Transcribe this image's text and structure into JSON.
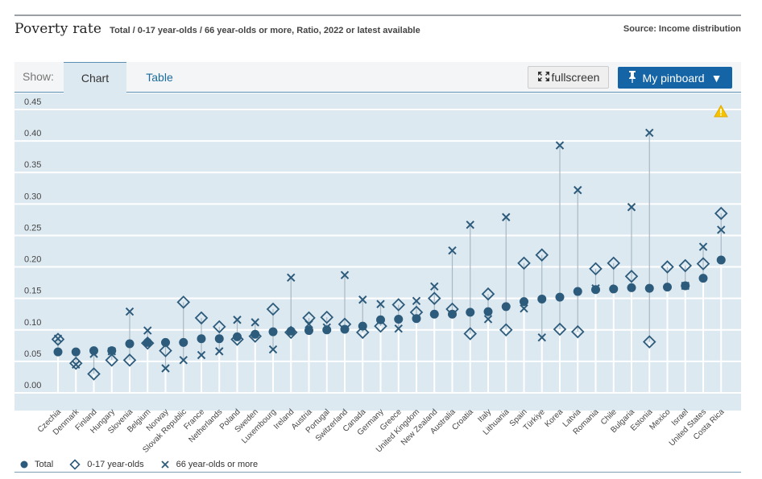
{
  "header": {
    "title": "Poverty rate",
    "subtitle": "Total / 0-17 year-olds / 66 year-olds or more, Ratio, 2022 or latest available",
    "source": "Source: Income distribution"
  },
  "toolbar": {
    "show_label": "Show:",
    "tabs": [
      {
        "label": "Chart",
        "active": true
      },
      {
        "label": "Table",
        "active": false
      }
    ],
    "fullscreen_label": "fullscreen",
    "pinboard_label": "My pinboard"
  },
  "icons": {
    "fullscreen": "expand-arrows-icon",
    "pinboard": "pushpin-icon",
    "dropdown": "caret-down-icon",
    "warning": "warning-triangle-icon"
  },
  "colors": {
    "marker": "#2d5b7b",
    "plot_bg": "#dde9f1",
    "accent": "#1565a6",
    "warning": "#f5c400"
  },
  "legend": [
    {
      "label": "Total",
      "symbol": "circle"
    },
    {
      "label": "0-17 year-olds",
      "symbol": "diamond"
    },
    {
      "label": "66 year-olds or more",
      "symbol": "cross"
    }
  ],
  "chart_data": {
    "type": "scatter",
    "title": "Poverty rate",
    "xlabel": "",
    "ylabel": "",
    "ylim": [
      0,
      0.45
    ],
    "yticks": [
      "0.00",
      "0.05",
      "0.10",
      "0.15",
      "0.20",
      "0.25",
      "0.30",
      "0.35",
      "0.40",
      "0.45"
    ],
    "grid": true,
    "legend_position": "bottom-left",
    "categories": [
      "Czechia",
      "Denmark",
      "Finland",
      "Hungary",
      "Slovenia",
      "Belgium",
      "Norway",
      "Slovak Republic",
      "France",
      "Netherlands",
      "Poland",
      "Sweden",
      "Luxembourg",
      "Ireland",
      "Austria",
      "Portugal",
      "Switzerland",
      "Canada",
      "Germany",
      "Greece",
      "United Kingdom",
      "New Zealand",
      "Australia",
      "Croatia",
      "Italy",
      "Lithuania",
      "Spain",
      "Türkiye",
      "Korea",
      "Latvia",
      "Romania",
      "Chile",
      "Bulgaria",
      "Estonia",
      "Mexico",
      "Israel",
      "United States",
      "Costa Rica"
    ],
    "series": [
      {
        "name": "Total",
        "symbol": "circle",
        "values": [
          0.065,
          0.065,
          0.067,
          0.067,
          0.078,
          0.08,
          0.08,
          0.08,
          0.086,
          0.086,
          0.089,
          0.093,
          0.097,
          0.098,
          0.099,
          0.1,
          0.101,
          0.106,
          0.116,
          0.117,
          0.118,
          0.125,
          0.125,
          0.128,
          0.129,
          0.137,
          0.145,
          0.149,
          0.152,
          0.161,
          0.164,
          0.165,
          0.167,
          0.166,
          0.168,
          0.17,
          0.182,
          0.211
        ]
      },
      {
        "name": "0-17 year-olds",
        "symbol": "diamond",
        "values": [
          0.085,
          0.047,
          0.03,
          0.052,
          0.052,
          0.079,
          0.067,
          0.144,
          0.119,
          0.105,
          0.085,
          0.09,
          0.133,
          0.096,
          0.119,
          0.12,
          0.109,
          0.096,
          0.106,
          0.14,
          0.128,
          0.15,
          0.133,
          0.094,
          0.157,
          0.1,
          0.206,
          0.219,
          0.101,
          0.097,
          0.197,
          0.206,
          0.185,
          0.081,
          0.2,
          0.202,
          0.205,
          0.285
        ]
      },
      {
        "name": "66 year-olds or more",
        "symbol": "cross",
        "values": [
          0.086,
          0.045,
          0.062,
          0.066,
          0.129,
          0.099,
          0.039,
          0.052,
          0.06,
          0.066,
          0.116,
          0.112,
          0.069,
          0.183,
          0.109,
          0.104,
          0.187,
          0.148,
          0.141,
          0.102,
          0.146,
          0.169,
          0.226,
          0.267,
          0.117,
          0.279,
          0.134,
          0.088,
          0.393,
          0.322,
          0.166,
          null,
          0.295,
          0.413,
          null,
          0.17,
          0.232,
          0.259
        ]
      }
    ]
  }
}
